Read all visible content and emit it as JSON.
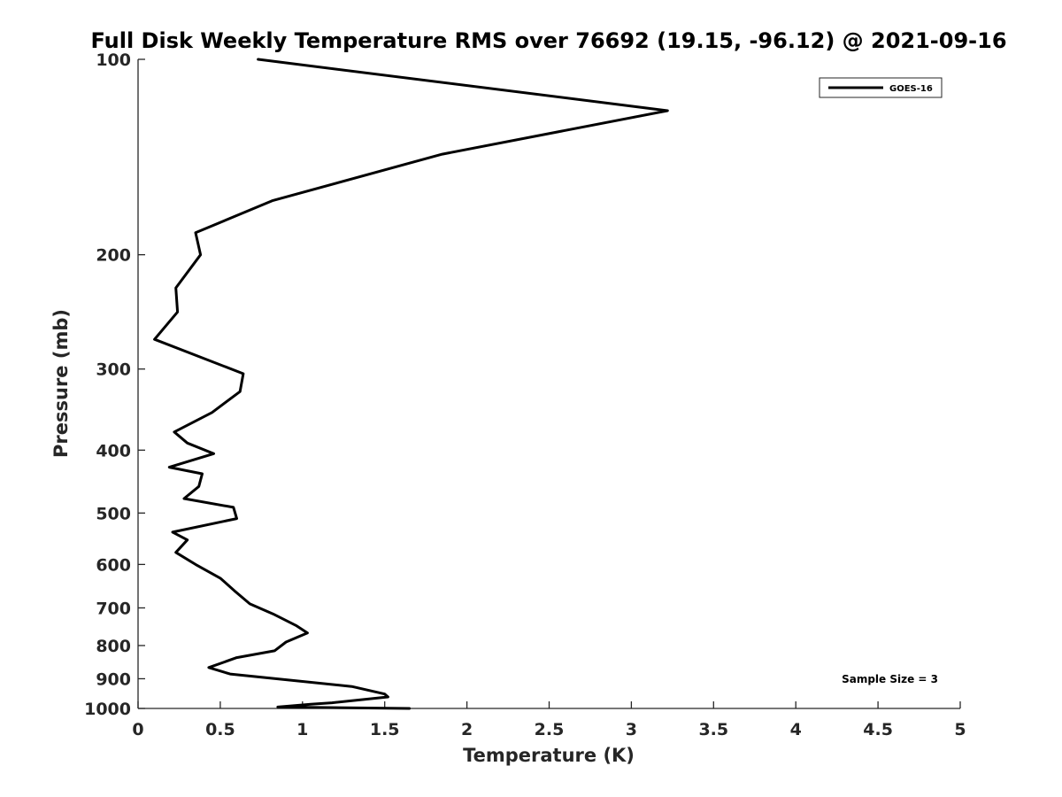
{
  "chart_data": {
    "type": "line",
    "title": "Full Disk Weekly Temperature RMS over 76692 (19.15, -96.12) @ 2021-09-16",
    "xlabel": "Temperature (K)",
    "ylabel": "Pressure (mb)",
    "xlim": [
      0,
      5
    ],
    "ylim": [
      100,
      1000
    ],
    "yscale": "log",
    "y_reversed": true,
    "grid": false,
    "legend_position": "top-right",
    "xticks": [
      0,
      0.5,
      1,
      1.5,
      2,
      2.5,
      3,
      3.5,
      4,
      4.5,
      5
    ],
    "xtick_labels": [
      "0",
      "0.5",
      "1",
      "1.5",
      "2",
      "2.5",
      "3",
      "3.5",
      "4",
      "4.5",
      "5"
    ],
    "yticks": [
      100,
      200,
      300,
      400,
      500,
      600,
      700,
      800,
      900,
      1000
    ],
    "ytick_labels": [
      "100",
      "200",
      "300",
      "400",
      "500",
      "600",
      "700",
      "800",
      "900",
      "1000"
    ],
    "annotation": "Sample Size = 3",
    "series": [
      {
        "name": "GOES-16",
        "color": "#000000",
        "x": [
          0.73,
          3.22,
          1.85,
          0.82,
          0.35,
          0.38,
          0.23,
          0.24,
          0.1,
          0.64,
          0.62,
          0.45,
          0.22,
          0.3,
          0.46,
          0.19,
          0.39,
          0.37,
          0.28,
          0.58,
          0.6,
          0.21,
          0.3,
          0.23,
          0.35,
          0.5,
          0.59,
          0.68,
          0.82,
          0.96,
          1.03,
          0.9,
          0.83,
          0.6,
          0.43,
          0.56,
          1.3,
          1.5,
          1.52,
          1.18,
          1.05,
          0.85,
          1.65
        ],
        "y": [
          100,
          120,
          140,
          165,
          185,
          200,
          225,
          245,
          270,
          305,
          325,
          350,
          375,
          390,
          405,
          425,
          435,
          455,
          475,
          490,
          510,
          535,
          550,
          575,
          600,
          630,
          660,
          690,
          715,
          745,
          765,
          790,
          815,
          835,
          865,
          885,
          925,
          950,
          960,
          980,
          985,
          995,
          1000
        ]
      }
    ]
  }
}
